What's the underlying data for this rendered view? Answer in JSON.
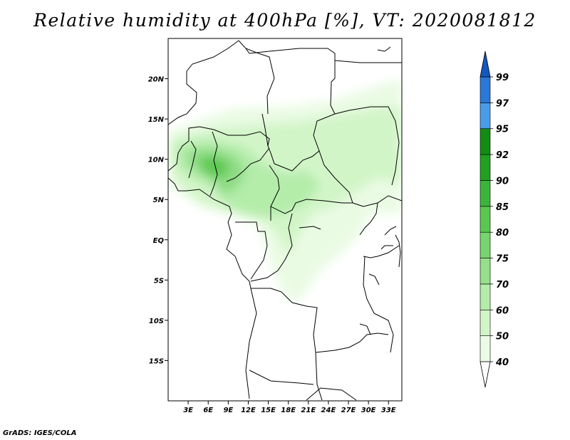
{
  "title": "Relative humidity at 400hPa [%], VT: 2020081812",
  "credit": "GrADS: IGES/COLA",
  "map": {
    "lon_range": [
      0,
      35
    ],
    "lat_range": [
      -20,
      25
    ],
    "lon_ticks": [
      {
        "value": 3,
        "label": "3E"
      },
      {
        "value": 6,
        "label": "6E"
      },
      {
        "value": 9,
        "label": "9E"
      },
      {
        "value": 12,
        "label": "12E"
      },
      {
        "value": 15,
        "label": "15E"
      },
      {
        "value": 18,
        "label": "18E"
      },
      {
        "value": 21,
        "label": "21E"
      },
      {
        "value": 24,
        "label": "24E"
      },
      {
        "value": 27,
        "label": "27E"
      },
      {
        "value": 30,
        "label": "30E"
      },
      {
        "value": 33,
        "label": "33E"
      }
    ],
    "lat_ticks": [
      {
        "value": 20,
        "label": "20N"
      },
      {
        "value": 15,
        "label": "15N"
      },
      {
        "value": 10,
        "label": "10N"
      },
      {
        "value": 5,
        "label": "5N"
      },
      {
        "value": 0,
        "label": "EQ"
      },
      {
        "value": -5,
        "label": "5S"
      },
      {
        "value": -10,
        "label": "10S"
      },
      {
        "value": -15,
        "label": "15S"
      }
    ]
  },
  "colorbar": {
    "levels": [
      "40",
      "50",
      "60",
      "70",
      "75",
      "80",
      "85",
      "90",
      "92",
      "95",
      "97",
      "99"
    ],
    "colors": [
      "#ecfbe6",
      "#d2f5c8",
      "#b4ecaa",
      "#96e08c",
      "#78d46e",
      "#5ac850",
      "#3cb43c",
      "#21a022",
      "#128c14",
      "#4a9ce8",
      "#2a78d8",
      "#1456c0",
      "#1432a0"
    ],
    "arrow_bottom_color": "#ffffff",
    "arrow_top_color": "#1456c0"
  }
}
